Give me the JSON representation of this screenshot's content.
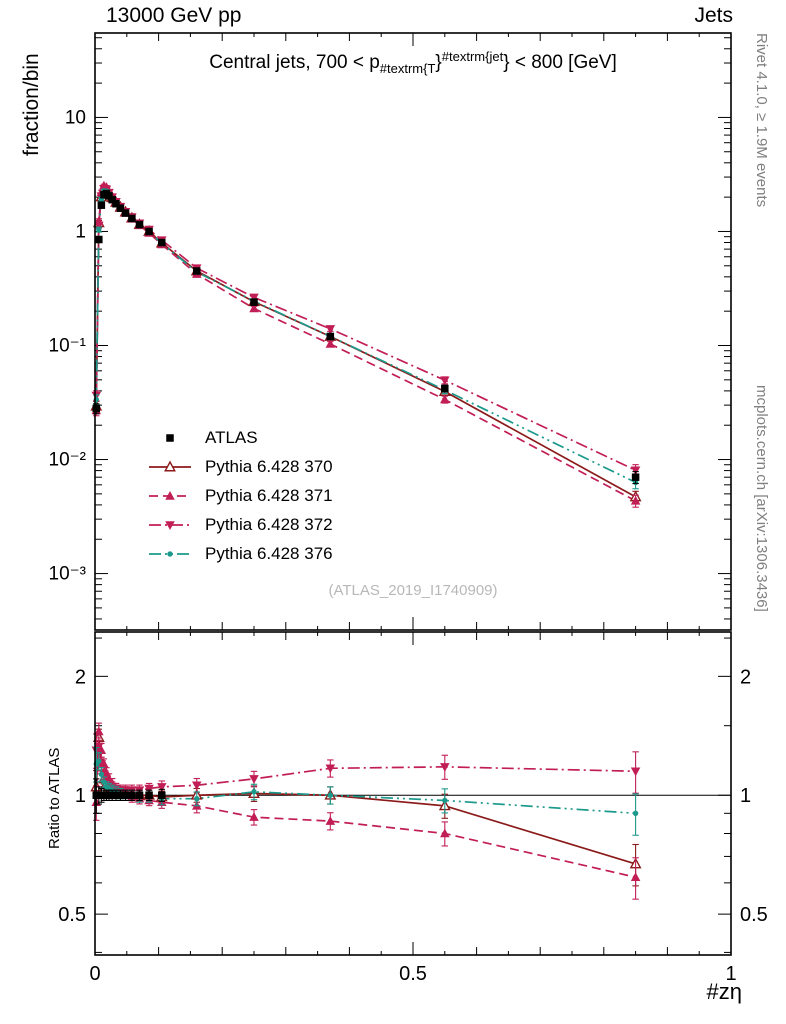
{
  "header": {
    "left_title": "13000 GeV pp",
    "right_title": "Jets"
  },
  "right_margin": {
    "top_credit": "Rivet 4.1.0, ≥ 1.9M events",
    "bottom_credit": "mcplots.cern.ch [arXiv:1306.3436]"
  },
  "main_panel": {
    "ylabel": "fraction/bin",
    "title": {
      "prefix": "Central jets, 700 < p",
      "sub": "#textrm{T",
      "mid": "}",
      "sup": "#textrm{jet",
      "suffix": "} < 800 [GeV]"
    },
    "watermark": "(ATLAS_2019_I1740909)"
  },
  "ratio_panel": {
    "ylabel": "Ratio to ATLAS"
  },
  "xaxis": {
    "label": "#zη"
  },
  "legend": [
    {
      "label": "ATLAS",
      "color": "#000000",
      "marker": "square",
      "line": "none"
    },
    {
      "label": "Pythia 6.428 370",
      "color": "#8b1a1a",
      "marker": "triangle-open",
      "line": "solid"
    },
    {
      "label": "Pythia 6.428 371",
      "color": "#c21e56",
      "marker": "triangle-filled",
      "line": "dashed"
    },
    {
      "label": "Pythia 6.428 372",
      "color": "#c21e56",
      "marker": "triangle-down-filled",
      "line": "dashdot"
    },
    {
      "label": "Pythia 6.428 376",
      "color": "#1b998b",
      "marker": "dot",
      "line": "dashdotdot"
    }
  ],
  "chart_data": {
    "type": "line",
    "title": "Central jets, 700 < pT^jet < 800 [GeV]",
    "xlabel": "#zη",
    "ylabel_main": "fraction/bin",
    "ylabel_ratio": "Ratio to ATLAS",
    "x": [
      0.002,
      0.006,
      0.01,
      0.014,
      0.018,
      0.022,
      0.027,
      0.033,
      0.04,
      0.048,
      0.058,
      0.07,
      0.085,
      0.105,
      0.16,
      0.25,
      0.37,
      0.55,
      0.85
    ],
    "err_frac": [
      0.1,
      0.05,
      0.04,
      0.03,
      0.03,
      0.03,
      0.03,
      0.03,
      0.03,
      0.03,
      0.03,
      0.03,
      0.03,
      0.035,
      0.04,
      0.045,
      0.05,
      0.07,
      0.12
    ],
    "atlas": {
      "name": "ATLAS",
      "color": "#000000",
      "marker": "square",
      "values": [
        0.028,
        0.85,
        1.7,
        2.1,
        2.15,
        2.05,
        1.9,
        1.75,
        1.6,
        1.45,
        1.3,
        1.15,
        1.0,
        0.8,
        0.45,
        0.24,
        0.12,
        0.042,
        0.007
      ]
    },
    "series": [
      {
        "name": "Pythia 6.428 370",
        "color": "#8b1a1a",
        "marker": "triangle-open",
        "line": "solid",
        "values": [
          0.0294,
          1.19,
          2.01,
          2.31,
          2.3,
          2.15,
          1.98,
          1.8,
          1.63,
          1.48,
          1.31,
          1.15,
          1.0,
          0.792,
          0.45,
          0.242,
          0.12,
          0.0395,
          0.0047
        ],
        "ratio": [
          1.05,
          1.4,
          1.18,
          1.1,
          1.07,
          1.05,
          1.04,
          1.03,
          1.02,
          1.02,
          1.01,
          1.0,
          1.0,
          0.99,
          1.0,
          1.01,
          1.0,
          0.94,
          0.67
        ]
      },
      {
        "name": "Pythia 6.428 371",
        "color": "#c21e56",
        "marker": "triangle-filled",
        "line": "dashed",
        "values": [
          0.0269,
          1.23,
          2.21,
          2.52,
          2.45,
          2.26,
          2.03,
          1.82,
          1.63,
          1.45,
          1.29,
          1.13,
          0.97,
          0.768,
          0.423,
          0.211,
          0.103,
          0.0336,
          0.00434
        ],
        "ratio": [
          0.96,
          1.45,
          1.3,
          1.2,
          1.14,
          1.1,
          1.07,
          1.04,
          1.02,
          1.0,
          0.99,
          0.98,
          0.97,
          0.96,
          0.94,
          0.88,
          0.86,
          0.8,
          0.62
        ]
      },
      {
        "name": "Pythia 6.428 372",
        "color": "#c21e56",
        "marker": "triangle-down-filled",
        "line": "dashdot",
        "values": [
          0.0364,
          1.13,
          2.04,
          2.37,
          2.34,
          2.19,
          2.0,
          1.82,
          1.65,
          1.49,
          1.34,
          1.18,
          1.04,
          0.84,
          0.477,
          0.264,
          0.14,
          0.0496,
          0.00805
        ],
        "ratio": [
          1.3,
          1.33,
          1.2,
          1.13,
          1.09,
          1.07,
          1.05,
          1.04,
          1.03,
          1.03,
          1.03,
          1.03,
          1.04,
          1.05,
          1.06,
          1.1,
          1.17,
          1.18,
          1.15
        ]
      },
      {
        "name": "Pythia 6.428 376",
        "color": "#1b998b",
        "marker": "dot",
        "line": "dashdotdot",
        "values": [
          0.0336,
          1.04,
          1.92,
          2.27,
          2.26,
          2.13,
          1.96,
          1.79,
          1.62,
          1.45,
          1.3,
          1.14,
          0.99,
          0.788,
          0.441,
          0.245,
          0.12,
          0.0407,
          0.0063
        ],
        "ratio": [
          1.2,
          1.22,
          1.13,
          1.08,
          1.05,
          1.04,
          1.03,
          1.02,
          1.01,
          1.0,
          1.0,
          0.99,
          0.99,
          0.98,
          0.98,
          1.02,
          1.0,
          0.97,
          0.9
        ]
      }
    ],
    "main_axis": {
      "scale": "log",
      "min": 0.00032,
      "max": 55,
      "ticks": [
        {
          "v": 10,
          "label": "10"
        },
        {
          "v": 1,
          "label": "1"
        },
        {
          "v": 0.1,
          "label": "10⁻¹"
        },
        {
          "v": 0.01,
          "label": "10⁻²"
        },
        {
          "v": 0.001,
          "label": "10⁻³"
        }
      ]
    },
    "ratio_axis": {
      "scale": "log",
      "min": 0.394,
      "max": 2.59,
      "ticks": [
        {
          "v": 2,
          "label": "2"
        },
        {
          "v": 1,
          "label": "1"
        },
        {
          "v": 0.5,
          "label": "0.5"
        }
      ],
      "minor": [
        0.4,
        0.6,
        0.7,
        0.8,
        0.9,
        1.5,
        2.5
      ]
    },
    "x_axis": {
      "min": 0,
      "max": 1,
      "major": [
        0,
        0.5,
        1
      ],
      "labels": [
        "0",
        "0.5",
        "1"
      ]
    },
    "legend_position": "inside-left-middle",
    "grid": false
  }
}
